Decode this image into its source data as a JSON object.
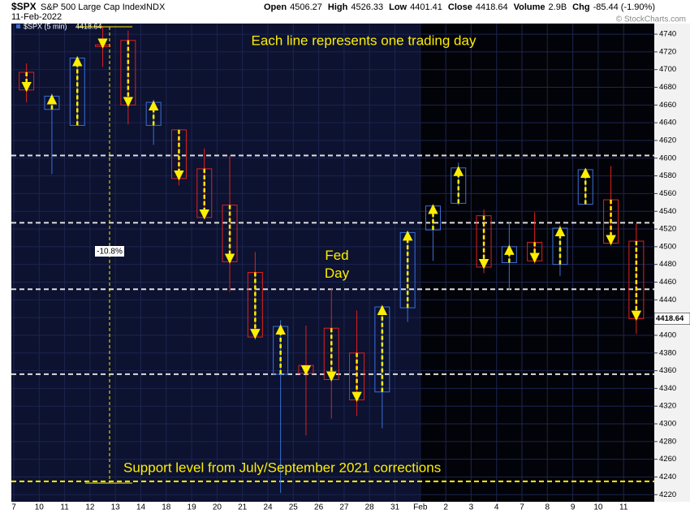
{
  "chart_data": {
    "type": "candlestick",
    "symbol": "$SPX",
    "title": "S&P 500 Large Cap Index",
    "exchange": "INDX",
    "date": "11-Feb-2022",
    "stats": [
      {
        "label": "Open",
        "value": "4506.27"
      },
      {
        "label": "High",
        "value": "4526.33"
      },
      {
        "label": "Low",
        "value": "4401.41"
      },
      {
        "label": "Close",
        "value": "4418.64"
      },
      {
        "label": "Volume",
        "value": "2.9B"
      },
      {
        "label": "Chg",
        "value": "-85.44 (-1.90%)"
      }
    ],
    "copyright": "© StockCharts.com",
    "legend": "$SPX (5 min)",
    "annotations": {
      "top": "Each line represents one trading day",
      "fed": "Fed Day",
      "drawdown": "-10.8%",
      "support": "Support level from July/September 2021 corrections"
    },
    "categories": [
      "7",
      "10",
      "11",
      "12",
      "13",
      "14",
      "18",
      "19",
      "20",
      "21",
      "24",
      "25",
      "26",
      "27",
      "28",
      "31",
      "Feb",
      "2",
      "3",
      "4",
      "7",
      "8",
      "9",
      "10",
      "11"
    ],
    "open": [
      4697,
      4655,
      4637,
      4728,
      4733,
      4637,
      4632,
      4588,
      4547,
      4471,
      4356,
      4366,
      4408,
      4380,
      4336,
      4431,
      4519,
      4549,
      4535,
      4482,
      4505,
      4480,
      4548,
      4553,
      4506.27
    ],
    "high": [
      4707,
      4673,
      4714,
      4749,
      4744,
      4666,
      4632,
      4611,
      4603,
      4494,
      4417,
      4411,
      4453,
      4428,
      4432,
      4516,
      4546,
      4595,
      4542,
      4528,
      4539,
      4524,
      4588,
      4591,
      4526.33
    ],
    "low": [
      4663,
      4582,
      4637,
      4703,
      4638,
      4615,
      4569,
      4531,
      4449,
      4395,
      4222,
      4287,
      4306,
      4309,
      4295,
      4415,
      4484,
      4547,
      4470,
      4451,
      4481,
      4467,
      4548,
      4501,
      4401.41
    ],
    "close": [
      4677,
      4670,
      4713,
      4726,
      4660,
      4663,
      4577,
      4533,
      4483,
      4398,
      4410,
      4357,
      4350,
      4327,
      4432,
      4516,
      4546,
      4589,
      4477,
      4500,
      4484,
      4521,
      4587,
      4504,
      4418.64
    ],
    "up_color": "#3a6fd8",
    "down_color": "#e02020",
    "arrow_color": "#ffee00",
    "reference_lines": [
      {
        "value": 4603,
        "color": "#dddddd"
      },
      {
        "value": 4527,
        "color": "#dddddd"
      },
      {
        "value": 4452,
        "color": "#dddddd"
      },
      {
        "value": 4356,
        "color": "#dddddd"
      },
      {
        "value": 4235,
        "color": "#ffee00"
      }
    ],
    "ylim": [
      4212,
      4752
    ],
    "yticks": [
      4220,
      4240,
      4260,
      4280,
      4300,
      4320,
      4340,
      4360,
      4380,
      4400,
      4420,
      4440,
      4460,
      4480,
      4500,
      4520,
      4540,
      4560,
      4580,
      4600,
      4620,
      4640,
      4660,
      4680,
      4700,
      4720,
      4740
    ],
    "grid": true
  }
}
